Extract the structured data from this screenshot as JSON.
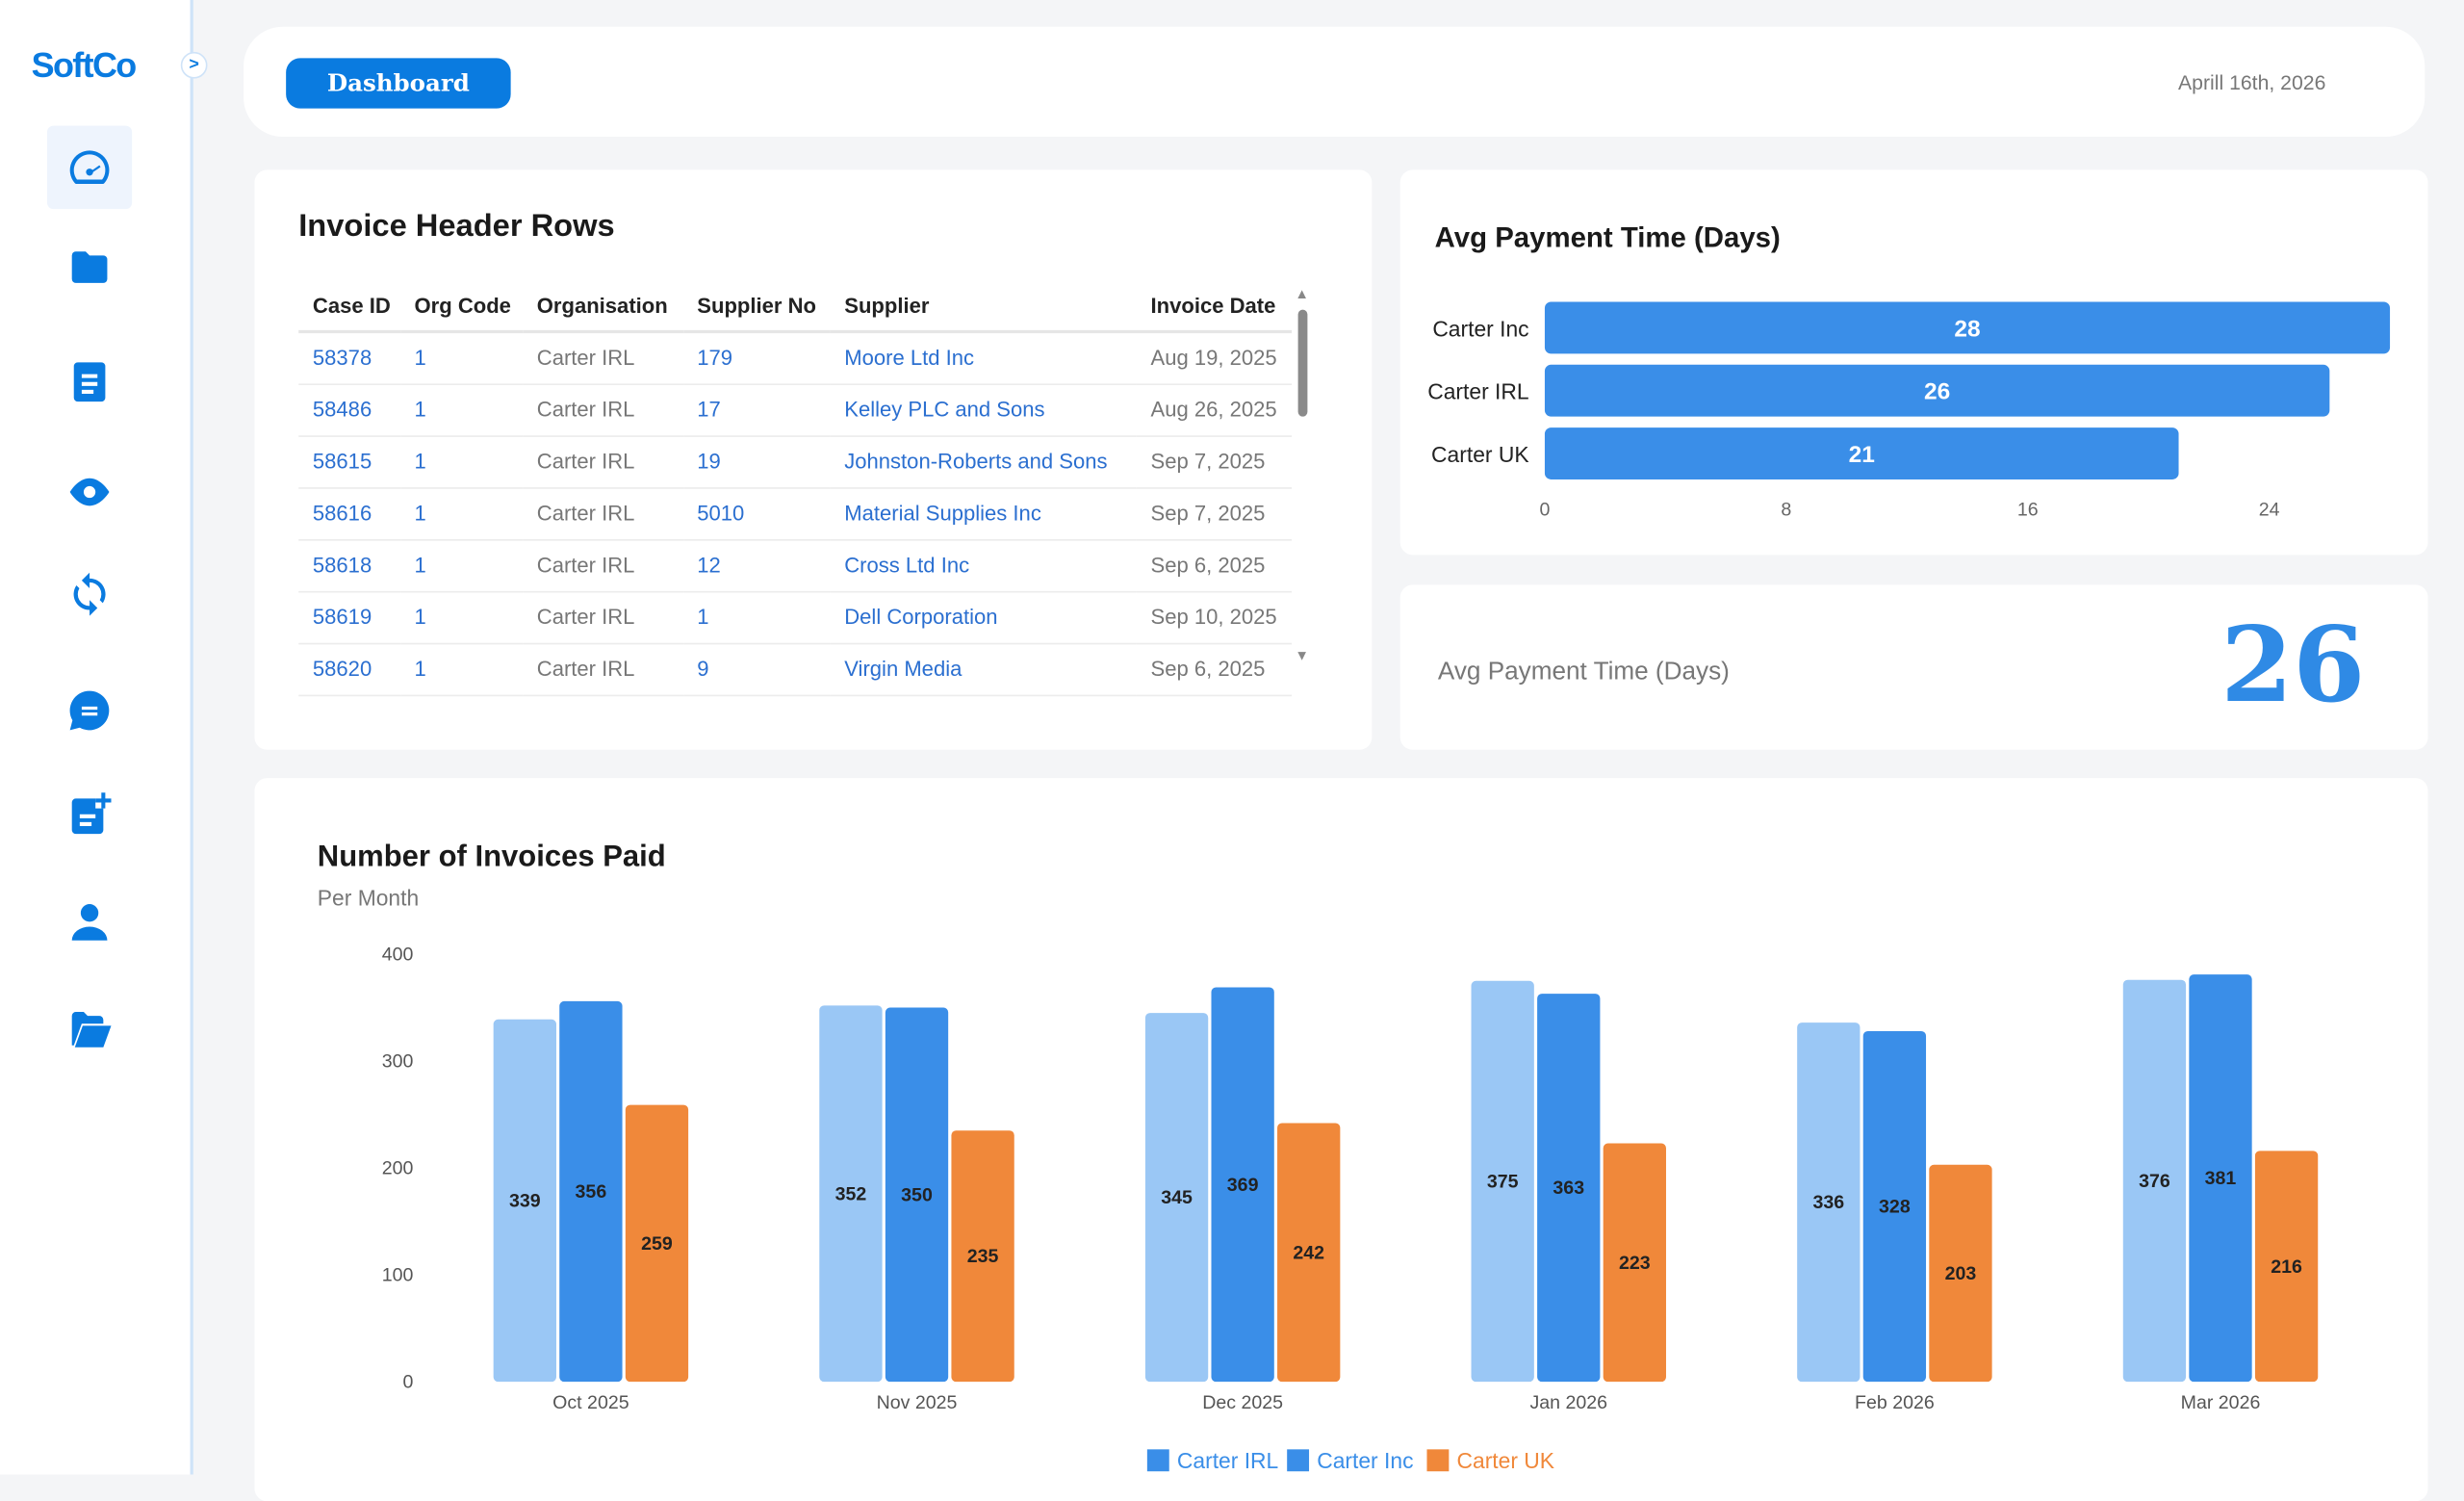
{
  "sidebar": {
    "logo": "SoftCo",
    "toggle": ">",
    "items": [
      "dashboard",
      "folder",
      "document",
      "eye",
      "sync",
      "chat",
      "add-document",
      "user",
      "open-folder"
    ]
  },
  "header": {
    "button": "Dashboard",
    "date": "Aprill 16th, 2026"
  },
  "invoice_table": {
    "title": "Invoice Header Rows",
    "columns": [
      "Case ID",
      "Org Code",
      "Organisation",
      "Supplier No",
      "Supplier",
      "Invoice Date"
    ],
    "rows": [
      [
        "58378",
        "1",
        "Carter IRL",
        "179",
        "Moore Ltd Inc",
        "Aug 19, 2025"
      ],
      [
        "58486",
        "1",
        "Carter IRL",
        "17",
        "Kelley PLC and Sons",
        "Aug 26, 2025"
      ],
      [
        "58615",
        "1",
        "Carter IRL",
        "19",
        "Johnston-Roberts and Sons",
        "Sep 7, 2025"
      ],
      [
        "58616",
        "1",
        "Carter IRL",
        "5010",
        "Material Supplies Inc",
        "Sep 7, 2025"
      ],
      [
        "58618",
        "1",
        "Carter IRL",
        "12",
        "Cross Ltd Inc",
        "Sep 6, 2025"
      ],
      [
        "58619",
        "1",
        "Carter IRL",
        "1",
        "Dell Corporation",
        "Sep 10, 2025"
      ],
      [
        "58620",
        "1",
        "Carter IRL",
        "9",
        "Virgin Media",
        "Sep 6, 2025"
      ]
    ]
  },
  "kpi": {
    "label": "Avg Payment Time (Days)",
    "value": "26"
  },
  "colors": {
    "primary": "#0a7be0",
    "irl": "#9ac7f5",
    "inc": "#3a8ee8",
    "uk": "#f0883a"
  },
  "chart_data": [
    {
      "type": "bar",
      "orientation": "horizontal",
      "title": "Avg Payment Time (Days)",
      "categories": [
        "Carter Inc",
        "Carter IRL",
        "Carter UK"
      ],
      "values": [
        28,
        26,
        21
      ],
      "xticks": [
        0,
        8,
        16,
        24
      ],
      "xlim": [
        0,
        28
      ]
    },
    {
      "type": "bar",
      "title": "Number of Invoices Paid",
      "subtitle": "Per Month",
      "categories": [
        "Oct 2025",
        "Nov 2025",
        "Dec 2025",
        "Jan 2026",
        "Feb 2026",
        "Mar 2026"
      ],
      "series": [
        {
          "name": "Carter IRL",
          "values": [
            339,
            352,
            345,
            375,
            336,
            376
          ]
        },
        {
          "name": "Carter Inc",
          "values": [
            356,
            350,
            369,
            363,
            328,
            381
          ]
        },
        {
          "name": "Carter UK",
          "values": [
            259,
            235,
            242,
            223,
            203,
            216
          ]
        }
      ],
      "yticks": [
        0,
        100,
        200,
        300,
        400
      ],
      "ylim": [
        0,
        400
      ],
      "legend": "bottom"
    }
  ]
}
